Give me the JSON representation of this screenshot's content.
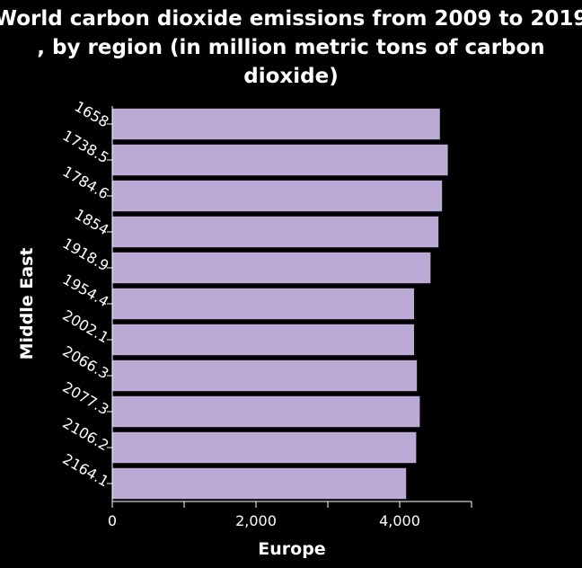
{
  "chart_data": {
    "type": "bar",
    "orientation": "horizontal",
    "title": "World carbon dioxide emissions from 2009 to 2019 , by region (in million metric tons of carbon dioxide)",
    "xlabel": "Europe",
    "ylabel": "Middle East",
    "categories": [
      "1658",
      "1738.5",
      "1784.6",
      "1854",
      "1918.9",
      "1954.4",
      "2002.1",
      "2066.3",
      "2077.3",
      "2106.2",
      "2164.1"
    ],
    "values": [
      4560,
      4670,
      4590,
      4540,
      4430,
      4200,
      4200,
      4240,
      4280,
      4230,
      4090
    ],
    "xlim": [
      0,
      5000
    ],
    "xticks": [
      0,
      1000,
      2000,
      3000,
      4000,
      5000
    ],
    "xtick_labels": [
      "0",
      "",
      "2,000",
      "",
      "4,000",
      ""
    ],
    "grid": false,
    "colors": {
      "background": "#000000",
      "bar": "#bcaad6",
      "text": "#ffffff"
    }
  }
}
